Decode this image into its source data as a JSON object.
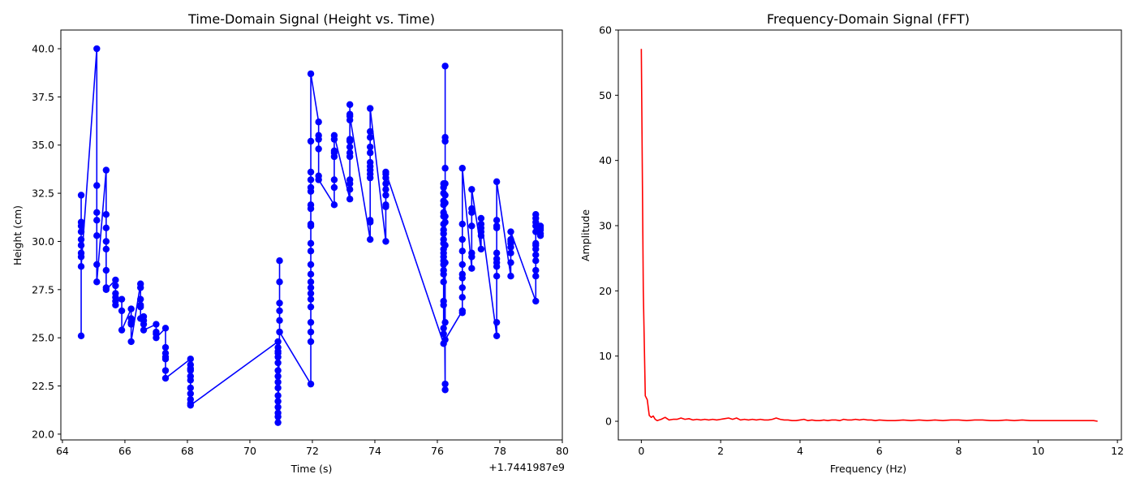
{
  "chart_data": [
    {
      "type": "line",
      "title": "Time-Domain Signal (Height vs. Time)",
      "xlabel": "Time (s)",
      "ylabel": "Height (cm)",
      "x_offset_label": "+1.7441987e9",
      "xlim": [
        63.95,
        80.0
      ],
      "ylim": [
        19.7,
        40.97
      ],
      "x_ticks": [
        64,
        66,
        68,
        70,
        72,
        74,
        76,
        78,
        80
      ],
      "y_ticks": [
        20.0,
        22.5,
        25.0,
        27.5,
        30.0,
        32.5,
        35.0,
        37.5,
        40.0
      ],
      "grid": false,
      "series": [
        {
          "color": "#0000ff",
          "marker": "circle",
          "x": [
            64.6,
            64.6,
            64.6,
            64.6,
            64.6,
            64.6,
            64.6,
            64.6,
            64.6,
            64.6,
            65.1,
            65.1,
            65.1,
            65.1,
            65.1,
            65.1,
            65.1,
            65.4,
            65.4,
            65.4,
            65.4,
            65.4,
            65.4,
            65.4,
            65.4,
            65.7,
            65.7,
            65.7,
            65.7,
            65.7,
            65.7,
            65.9,
            65.9,
            65.9,
            66.2,
            66.2,
            66.2,
            66.2,
            66.2,
            66.5,
            66.5,
            66.5,
            66.5,
            66.5,
            66.5,
            66.6,
            66.6,
            66.6,
            66.6,
            67.0,
            67.0,
            67.0,
            67.0,
            67.3,
            67.3,
            67.3,
            67.3,
            67.3,
            67.3,
            67.3,
            68.1,
            68.1,
            68.1,
            68.1,
            68.1,
            68.1,
            68.1,
            68.1,
            68.1,
            68.1,
            68.1,
            70.9,
            70.9,
            70.9,
            70.9,
            70.9,
            70.9,
            70.9,
            70.9,
            70.9,
            70.9,
            70.9,
            70.9,
            70.9,
            70.9,
            70.9,
            70.9,
            70.95,
            70.95,
            70.95,
            70.95,
            70.95,
            70.95,
            70.95,
            71.95,
            71.95,
            71.95,
            71.95,
            71.95,
            71.95,
            71.95,
            71.95,
            71.95,
            71.95,
            71.95,
            71.95,
            71.95,
            71.95,
            71.95,
            71.95,
            71.95,
            71.95,
            71.95,
            71.95,
            71.95,
            71.95,
            71.95,
            72.2,
            72.2,
            72.2,
            72.2,
            72.2,
            72.2,
            72.7,
            72.7,
            72.7,
            72.7,
            72.7,
            72.7,
            72.7,
            72.7,
            73.2,
            73.2,
            73.2,
            73.2,
            73.2,
            73.2,
            73.2,
            73.2,
            73.2,
            73.2,
            73.2,
            73.2,
            73.2,
            73.85,
            73.85,
            73.85,
            73.85,
            73.85,
            73.85,
            73.85,
            73.85,
            73.85,
            73.85,
            73.85,
            73.85,
            73.85,
            74.35,
            74.35,
            74.35,
            74.35,
            74.35,
            74.35,
            74.35,
            74.35,
            74.35,
            76.2,
            76.2,
            76.2,
            76.2,
            76.2,
            76.2,
            76.2,
            76.2,
            76.2,
            76.2,
            76.2,
            76.2,
            76.2,
            76.2,
            76.2,
            76.2,
            76.2,
            76.2,
            76.2,
            76.2,
            76.2,
            76.2,
            76.2,
            76.2,
            76.2,
            76.25,
            76.25,
            76.25,
            76.25,
            76.25,
            76.25,
            76.25,
            76.25,
            76.25,
            76.25,
            76.25,
            76.25,
            76.25,
            76.25,
            76.25,
            76.8,
            76.8,
            76.8,
            76.8,
            76.8,
            76.8,
            76.8,
            76.8,
            76.8,
            76.8,
            76.8,
            77.1,
            77.1,
            77.1,
            77.1,
            77.1,
            77.1,
            77.1,
            77.4,
            77.4,
            77.4,
            77.4,
            77.4,
            77.4,
            77.9,
            77.9,
            77.9,
            77.9,
            77.9,
            77.9,
            77.9,
            77.9,
            77.9,
            77.9,
            77.9,
            78.35,
            78.35,
            78.35,
            78.35,
            78.35,
            78.35,
            78.35,
            78.35,
            79.15,
            79.15,
            79.15,
            79.15,
            79.15,
            79.15,
            79.15,
            79.15,
            79.15,
            79.15,
            79.15,
            79.15,
            79.15,
            79.3,
            79.3,
            79.3,
            79.3,
            79.3
          ],
          "y": [
            25.1,
            31.0,
            32.4,
            30.8,
            30.5,
            30.1,
            29.8,
            29.4,
            29.2,
            28.7,
            40.0,
            32.9,
            31.5,
            31.1,
            30.3,
            28.8,
            27.9,
            33.7,
            31.4,
            30.7,
            30.0,
            29.6,
            28.5,
            27.6,
            27.5,
            28.0,
            27.7,
            27.3,
            27.1,
            26.7,
            26.9,
            27.0,
            26.4,
            25.4,
            26.5,
            26.0,
            25.7,
            25.8,
            24.8,
            27.8,
            27.6,
            27.0,
            26.7,
            26.6,
            26.0,
            25.9,
            26.1,
            25.7,
            25.4,
            25.7,
            25.3,
            25.2,
            25.0,
            25.5,
            24.5,
            24.2,
            23.9,
            24.0,
            23.3,
            22.9,
            23.9,
            23.6,
            23.4,
            23.3,
            23.0,
            22.8,
            22.4,
            22.1,
            21.8,
            21.6,
            21.5,
            24.8,
            24.5,
            24.3,
            24.2,
            24.0,
            23.7,
            23.3,
            23.0,
            22.7,
            22.4,
            22.0,
            21.7,
            21.4,
            21.1,
            20.9,
            20.6,
            25.3,
            25.9,
            26.4,
            26.8,
            27.9,
            29.0,
            25.3,
            22.6,
            24.8,
            25.3,
            25.8,
            26.6,
            27.0,
            27.3,
            27.6,
            27.9,
            28.3,
            28.8,
            29.5,
            29.9,
            30.8,
            30.9,
            31.7,
            31.9,
            32.6,
            32.8,
            33.2,
            33.6,
            35.2,
            38.7,
            36.2,
            35.5,
            35.3,
            34.8,
            33.4,
            33.2,
            31.9,
            32.8,
            33.2,
            34.4,
            34.7,
            34.6,
            35.3,
            35.5,
            32.2,
            32.7,
            33.0,
            33.2,
            34.4,
            34.6,
            34.9,
            35.2,
            35.3,
            36.3,
            36.6,
            37.1,
            36.5,
            30.1,
            31.0,
            31.1,
            33.3,
            33.5,
            33.7,
            33.9,
            34.1,
            34.6,
            34.9,
            35.4,
            35.7,
            36.9,
            30.0,
            31.8,
            31.9,
            32.4,
            32.7,
            33.0,
            33.3,
            33.5,
            33.6,
            24.7,
            25.2,
            25.5,
            26.7,
            26.9,
            27.9,
            28.3,
            28.5,
            28.8,
            29.0,
            29.2,
            29.4,
            29.6,
            29.9,
            30.1,
            30.4,
            30.6,
            30.9,
            31.3,
            31.5,
            31.9,
            32.1,
            32.5,
            32.8,
            33.0,
            22.3,
            22.6,
            25.8,
            28.9,
            29.8,
            31.0,
            31.3,
            32.0,
            32.4,
            33.0,
            33.8,
            35.2,
            35.4,
            39.1,
            24.9,
            26.4,
            26.3,
            27.1,
            27.6,
            28.1,
            28.3,
            28.8,
            29.5,
            30.1,
            30.9,
            33.8,
            28.6,
            29.2,
            29.4,
            30.8,
            31.5,
            31.7,
            32.7,
            29.6,
            30.3,
            30.5,
            30.7,
            30.9,
            31.2,
            25.1,
            25.8,
            28.2,
            28.7,
            28.9,
            29.1,
            29.4,
            30.7,
            30.8,
            31.1,
            33.1,
            28.2,
            28.9,
            29.4,
            29.7,
            29.9,
            30.0,
            30.1,
            30.5,
            26.9,
            28.2,
            28.5,
            29.0,
            29.3,
            29.6,
            29.8,
            29.9,
            30.5,
            30.8,
            31.0,
            31.2,
            31.4,
            30.3,
            30.4,
            30.6,
            30.8,
            30.7
          ]
        }
      ]
    },
    {
      "type": "line",
      "title": "Frequency-Domain Signal (FFT)",
      "xlabel": "Frequency (Hz)",
      "ylabel": "Amplitude",
      "xlim": [
        -0.58,
        12.1
      ],
      "ylim": [
        -2.86,
        60.0
      ],
      "x_ticks": [
        0,
        2,
        4,
        6,
        8,
        10,
        12
      ],
      "y_ticks": [
        0,
        10,
        20,
        30,
        40,
        50,
        60
      ],
      "grid": false,
      "series": [
        {
          "color": "#ff0000",
          "x": [
            0.0,
            0.05,
            0.1,
            0.15,
            0.2,
            0.25,
            0.3,
            0.35,
            0.4,
            0.45,
            0.5,
            0.6,
            0.7,
            0.8,
            0.9,
            1.0,
            1.1,
            1.2,
            1.3,
            1.4,
            1.5,
            1.6,
            1.7,
            1.8,
            1.9,
            2.0,
            2.1,
            2.2,
            2.3,
            2.4,
            2.5,
            2.6,
            2.7,
            2.8,
            2.9,
            3.0,
            3.1,
            3.2,
            3.3,
            3.4,
            3.5,
            3.6,
            3.7,
            3.8,
            3.9,
            4.0,
            4.1,
            4.2,
            4.3,
            4.4,
            4.5,
            4.6,
            4.7,
            4.8,
            4.9,
            5.0,
            5.1,
            5.2,
            5.3,
            5.4,
            5.5,
            5.6,
            5.7,
            5.8,
            5.9,
            6.0,
            6.2,
            6.4,
            6.6,
            6.8,
            7.0,
            7.2,
            7.4,
            7.6,
            7.8,
            8.0,
            8.2,
            8.4,
            8.6,
            8.8,
            9.0,
            9.2,
            9.4,
            9.6,
            9.8,
            10.0,
            10.2,
            10.4,
            10.6,
            10.8,
            11.0,
            11.2,
            11.4,
            11.5
          ],
          "y": [
            57.1,
            20.0,
            3.9,
            3.3,
            0.9,
            0.6,
            0.8,
            0.3,
            0.1,
            0.2,
            0.3,
            0.6,
            0.2,
            0.3,
            0.3,
            0.5,
            0.3,
            0.4,
            0.2,
            0.3,
            0.2,
            0.3,
            0.2,
            0.3,
            0.2,
            0.3,
            0.4,
            0.5,
            0.3,
            0.5,
            0.2,
            0.3,
            0.2,
            0.3,
            0.2,
            0.3,
            0.2,
            0.2,
            0.3,
            0.5,
            0.3,
            0.2,
            0.2,
            0.1,
            0.1,
            0.2,
            0.3,
            0.1,
            0.2,
            0.1,
            0.1,
            0.2,
            0.1,
            0.2,
            0.2,
            0.1,
            0.3,
            0.2,
            0.2,
            0.3,
            0.2,
            0.3,
            0.2,
            0.2,
            0.1,
            0.2,
            0.1,
            0.1,
            0.2,
            0.1,
            0.2,
            0.1,
            0.2,
            0.1,
            0.2,
            0.2,
            0.1,
            0.2,
            0.2,
            0.1,
            0.1,
            0.2,
            0.1,
            0.2,
            0.1,
            0.1,
            0.1,
            0.1,
            0.1,
            0.1,
            0.1,
            0.1,
            0.1,
            0.0
          ]
        }
      ]
    }
  ]
}
